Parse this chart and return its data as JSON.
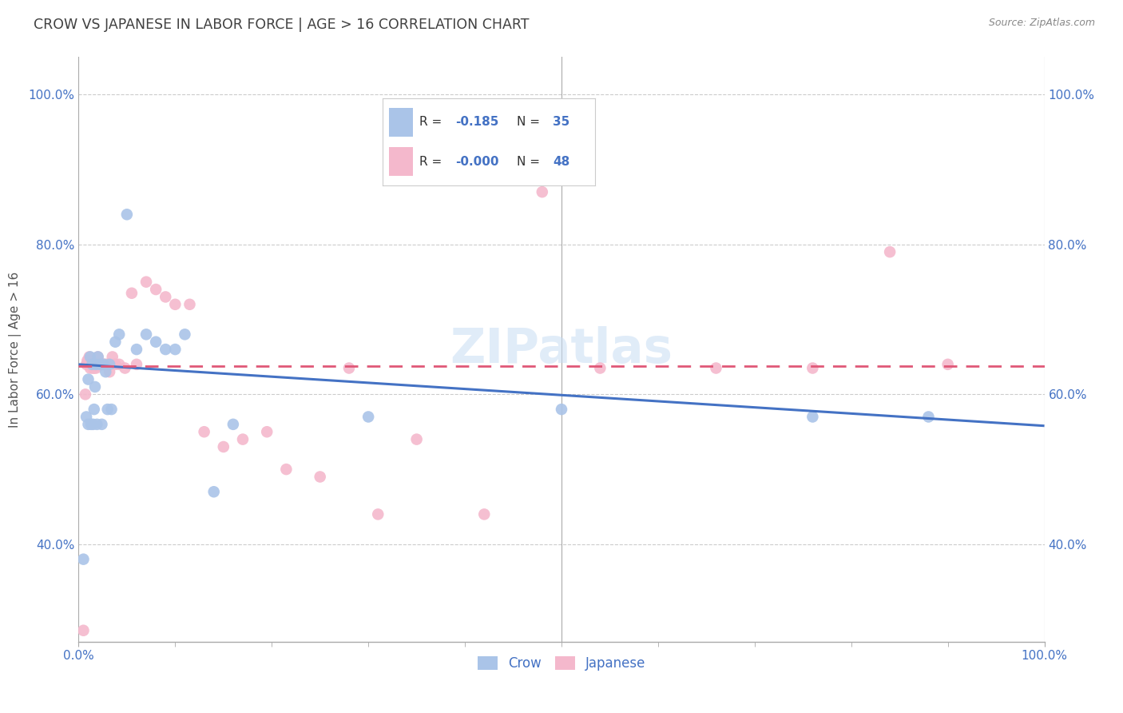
{
  "title": "CROW VS JAPANESE IN LABOR FORCE | AGE > 16 CORRELATION CHART",
  "source": "Source: ZipAtlas.com",
  "ylabel": "In Labor Force | Age > 16",
  "watermark": "ZIPatlas",
  "crow_R": "-0.185",
  "crow_N": "35",
  "japanese_R": "-0.000",
  "japanese_N": "48",
  "crow_color": "#aac4e8",
  "japanese_color": "#f4b8cc",
  "crow_line_color": "#4472c4",
  "japanese_line_color": "#e05878",
  "grid_color": "#cccccc",
  "title_color": "#404040",
  "axis_label_color": "#4472c4",
  "crow_x": [
    0.005,
    0.008,
    0.01,
    0.01,
    0.012,
    0.013,
    0.014,
    0.015,
    0.016,
    0.017,
    0.018,
    0.019,
    0.02,
    0.022,
    0.024,
    0.026,
    0.028,
    0.03,
    0.032,
    0.034,
    0.038,
    0.042,
    0.05,
    0.06,
    0.07,
    0.08,
    0.09,
    0.1,
    0.11,
    0.14,
    0.16,
    0.3,
    0.5,
    0.76,
    0.88
  ],
  "crow_y": [
    0.38,
    0.57,
    0.56,
    0.62,
    0.65,
    0.56,
    0.64,
    0.56,
    0.58,
    0.61,
    0.64,
    0.56,
    0.65,
    0.64,
    0.56,
    0.64,
    0.63,
    0.58,
    0.64,
    0.58,
    0.67,
    0.68,
    0.84,
    0.66,
    0.68,
    0.67,
    0.66,
    0.66,
    0.68,
    0.47,
    0.56,
    0.57,
    0.58,
    0.57,
    0.57
  ],
  "japanese_x": [
    0.005,
    0.007,
    0.008,
    0.009,
    0.01,
    0.011,
    0.012,
    0.013,
    0.014,
    0.015,
    0.016,
    0.017,
    0.018,
    0.019,
    0.02,
    0.022,
    0.024,
    0.026,
    0.028,
    0.03,
    0.032,
    0.035,
    0.038,
    0.042,
    0.048,
    0.055,
    0.06,
    0.07,
    0.08,
    0.09,
    0.1,
    0.115,
    0.13,
    0.15,
    0.17,
    0.195,
    0.215,
    0.25,
    0.28,
    0.31,
    0.35,
    0.42,
    0.48,
    0.54,
    0.66,
    0.76,
    0.84,
    0.9
  ],
  "japanese_y": [
    0.285,
    0.6,
    0.64,
    0.645,
    0.645,
    0.65,
    0.635,
    0.645,
    0.64,
    0.635,
    0.635,
    0.64,
    0.635,
    0.64,
    0.65,
    0.64,
    0.64,
    0.64,
    0.64,
    0.64,
    0.63,
    0.65,
    0.64,
    0.64,
    0.635,
    0.735,
    0.64,
    0.75,
    0.74,
    0.73,
    0.72,
    0.72,
    0.55,
    0.53,
    0.54,
    0.55,
    0.5,
    0.49,
    0.635,
    0.44,
    0.54,
    0.44,
    0.87,
    0.635,
    0.635,
    0.635,
    0.79,
    0.64
  ],
  "crow_trend": [
    0.64,
    0.558
  ],
  "japanese_trend": [
    0.638,
    0.638
  ],
  "xlim": [
    0.0,
    1.0
  ],
  "ylim": [
    0.27,
    1.05
  ],
  "yticks": [
    0.4,
    0.6,
    0.8,
    1.0
  ],
  "xtick_minor": [
    0.1,
    0.2,
    0.3,
    0.4,
    0.5,
    0.6,
    0.7,
    0.8,
    0.9
  ]
}
